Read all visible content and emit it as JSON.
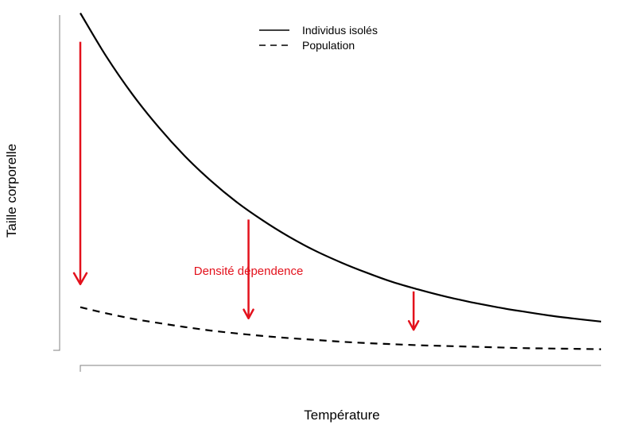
{
  "chart_data": {
    "type": "line",
    "title": "",
    "xlabel": "Température",
    "ylabel": "Taille corporelle",
    "xlim": [
      0,
      10
    ],
    "ylim": [
      0,
      10
    ],
    "ticks": "none",
    "grid": false,
    "legend": {
      "position": "top-center"
    },
    "series": [
      {
        "name": "Individus isolés",
        "style": "solid",
        "color": "#000000",
        "x": [
          0,
          0.5,
          1,
          1.5,
          2,
          2.5,
          3,
          3.5,
          4,
          4.5,
          5,
          5.5,
          6,
          6.5,
          7,
          7.5,
          8,
          8.5,
          9,
          9.5,
          10
        ],
        "values": [
          9.9,
          8.69,
          7.64,
          6.73,
          5.93,
          5.24,
          4.64,
          4.13,
          3.68,
          3.29,
          2.96,
          2.67,
          2.41,
          2.2,
          2.01,
          1.85,
          1.71,
          1.59,
          1.48,
          1.39,
          1.31
        ]
      },
      {
        "name": "Population",
        "style": "dashed",
        "color": "#000000",
        "x": [
          0,
          0.5,
          1,
          1.5,
          2,
          2.5,
          3,
          3.5,
          4,
          4.5,
          5,
          5.5,
          6,
          6.5,
          7,
          7.5,
          8,
          8.5,
          9,
          9.5,
          10
        ],
        "values": [
          1.71,
          1.54,
          1.39,
          1.27,
          1.16,
          1.06,
          0.98,
          0.91,
          0.85,
          0.8,
          0.75,
          0.71,
          0.68,
          0.65,
          0.63,
          0.61,
          0.59,
          0.57,
          0.56,
          0.55,
          0.54
        ]
      }
    ],
    "annotations": [
      {
        "type": "arrow",
        "color": "#e3111c",
        "x": 0,
        "y_from": 9.1,
        "y_to": 2.35
      },
      {
        "type": "arrow",
        "color": "#e3111c",
        "x": 3.23,
        "y_from": 4.15,
        "y_to": 1.4
      },
      {
        "type": "arrow",
        "color": "#e3111c",
        "x": 6.4,
        "y_from": 2.15,
        "y_to": 1.08
      },
      {
        "type": "text",
        "text": "Densité dépendence",
        "color": "#e3111c",
        "x": 3.23,
        "y": 2.5
      }
    ]
  }
}
